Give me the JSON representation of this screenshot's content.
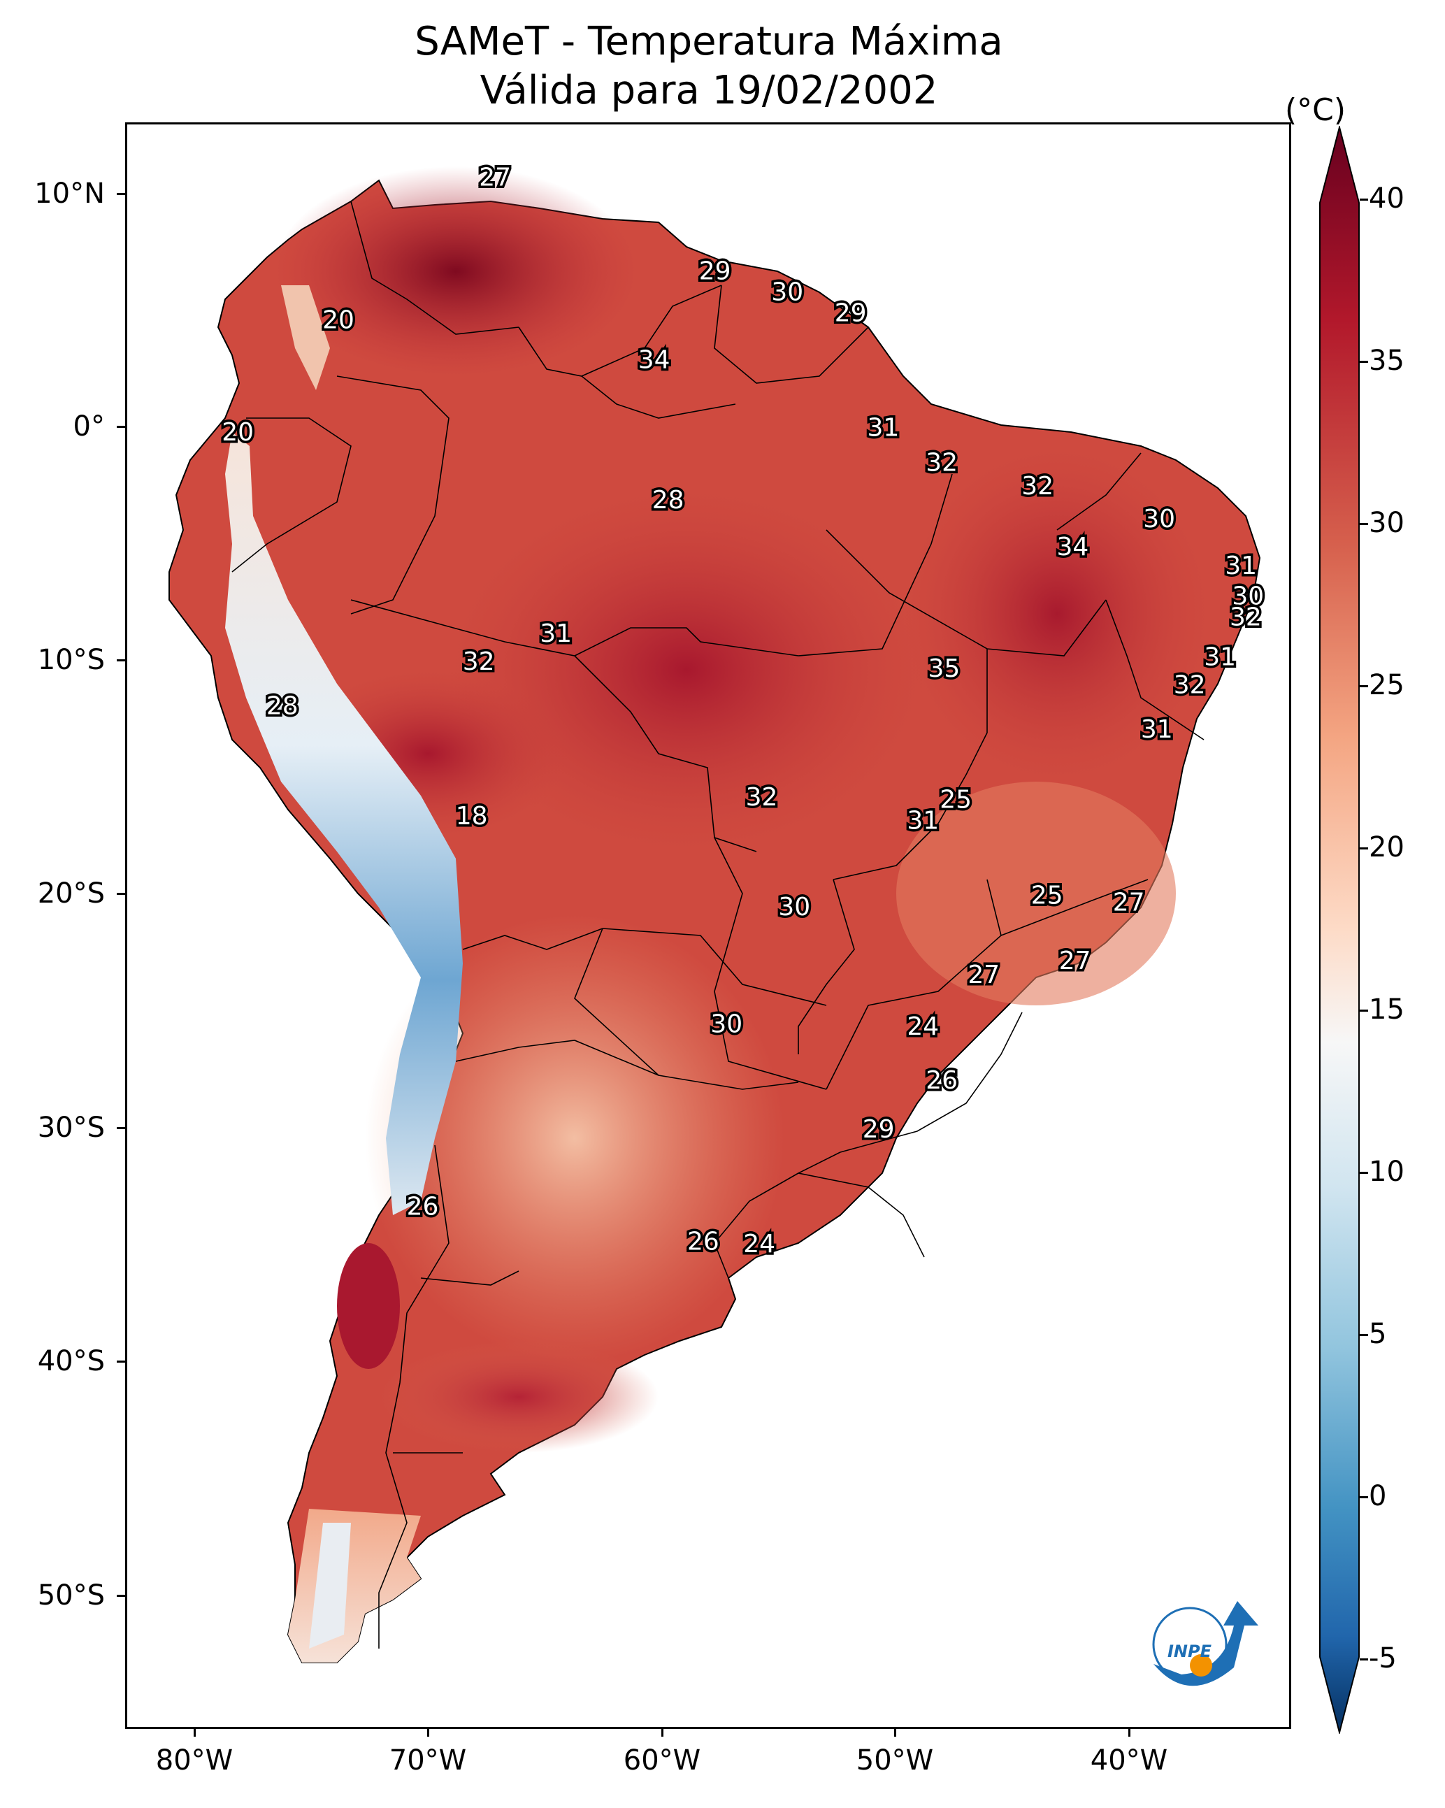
{
  "title_line1": "SAMeT - Temperatura Máxima",
  "title_line2": "Válida para 19/02/2002",
  "colorbar": {
    "unit": "(°C)",
    "ticks": [
      "40",
      "35",
      "30",
      "25",
      "20",
      "15",
      "10",
      "5",
      "0",
      "-5"
    ],
    "min": -7,
    "max": 42
  },
  "axes": {
    "lat_labels": [
      "10°N",
      "0°",
      "10°S",
      "20°S",
      "30°S",
      "40°S",
      "50°S"
    ],
    "lon_labels": [
      "80°W",
      "70°W",
      "60°W",
      "50°W",
      "40°W"
    ]
  },
  "logo": {
    "text": "INPE",
    "blue": "#1e6fb5",
    "orange": "#f39200"
  },
  "palette": {
    "hot": "#8c0d25",
    "warm": "#d7553f",
    "mild": "#f2b193",
    "cool": "#f5eeea",
    "cold": "#4c8fc4"
  },
  "temperature_labels": [
    {
      "value": "27",
      "lon": -67.2,
      "lat": 10.7
    },
    {
      "value": "29",
      "lon": -57.8,
      "lat": 6.7
    },
    {
      "value": "30",
      "lon": -54.7,
      "lat": 5.8
    },
    {
      "value": "29",
      "lon": -52.0,
      "lat": 4.9
    },
    {
      "value": "20",
      "lon": -73.9,
      "lat": 4.6
    },
    {
      "value": "34",
      "lon": -60.4,
      "lat": 2.9
    },
    {
      "value": "20",
      "lon": -78.2,
      "lat": -0.2
    },
    {
      "value": "31",
      "lon": -50.6,
      "lat": 0.0
    },
    {
      "value": "32",
      "lon": -48.1,
      "lat": -1.5
    },
    {
      "value": "32",
      "lon": -44.0,
      "lat": -2.5
    },
    {
      "value": "28",
      "lon": -59.8,
      "lat": -3.1
    },
    {
      "value": "30",
      "lon": -38.8,
      "lat": -3.9
    },
    {
      "value": "34",
      "lon": -42.5,
      "lat": -5.1
    },
    {
      "value": "31",
      "lon": -35.3,
      "lat": -5.9
    },
    {
      "value": "30",
      "lon": -35.0,
      "lat": -7.2
    },
    {
      "value": "32",
      "lon": -35.1,
      "lat": -8.1
    },
    {
      "value": "31",
      "lon": -64.6,
      "lat": -8.8
    },
    {
      "value": "31",
      "lon": -36.2,
      "lat": -9.8
    },
    {
      "value": "32",
      "lon": -67.9,
      "lat": -10.0
    },
    {
      "value": "35",
      "lon": -48.0,
      "lat": -10.3
    },
    {
      "value": "32",
      "lon": -37.5,
      "lat": -11.0
    },
    {
      "value": "28",
      "lon": -76.3,
      "lat": -11.9
    },
    {
      "value": "31",
      "lon": -38.9,
      "lat": -12.9
    },
    {
      "value": "25",
      "lon": -47.5,
      "lat": -15.9
    },
    {
      "value": "32",
      "lon": -55.8,
      "lat": -15.8
    },
    {
      "value": "31",
      "lon": -48.9,
      "lat": -16.8
    },
    {
      "value": "18",
      "lon": -68.2,
      "lat": -16.6
    },
    {
      "value": "25",
      "lon": -43.6,
      "lat": -20.0
    },
    {
      "value": "27",
      "lon": -40.1,
      "lat": -20.3
    },
    {
      "value": "30",
      "lon": -54.4,
      "lat": -20.5
    },
    {
      "value": "27",
      "lon": -42.4,
      "lat": -22.8
    },
    {
      "value": "27",
      "lon": -46.3,
      "lat": -23.4
    },
    {
      "value": "30",
      "lon": -57.3,
      "lat": -25.5
    },
    {
      "value": "24",
      "lon": -48.9,
      "lat": -25.6
    },
    {
      "value": "26",
      "lon": -48.1,
      "lat": -27.9
    },
    {
      "value": "29",
      "lon": -50.8,
      "lat": -30.0
    },
    {
      "value": "26",
      "lon": -70.3,
      "lat": -33.3
    },
    {
      "value": "26",
      "lon": -58.3,
      "lat": -34.8
    },
    {
      "value": "24",
      "lon": -55.9,
      "lat": -34.9
    }
  ]
}
